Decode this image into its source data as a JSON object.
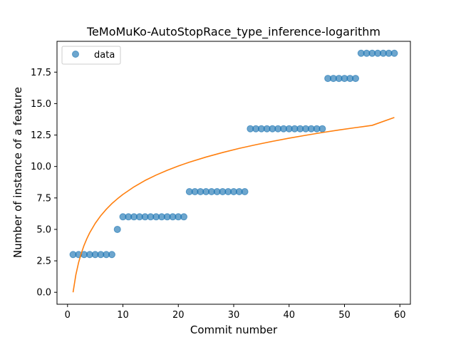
{
  "chart_data": {
    "type": "scatter",
    "title": "TeMoMuKo-AutoStopRace_type_inference-logarithm",
    "xlabel": "Commit number",
    "ylabel": "Number of instance of a feature",
    "xlim": [
      -1.9,
      61.9
    ],
    "ylim": [
      -0.95,
      19.95
    ],
    "xticks": [
      0,
      10,
      20,
      30,
      40,
      50,
      60
    ],
    "yticks": [
      0.0,
      2.5,
      5.0,
      7.5,
      10.0,
      12.5,
      15.0,
      17.5
    ],
    "xtick_labels": [
      "0",
      "10",
      "20",
      "30",
      "40",
      "50",
      "60"
    ],
    "ytick_labels": [
      "0.0",
      "2.5",
      "5.0",
      "7.5",
      "10.0",
      "12.5",
      "15.0",
      "17.5"
    ],
    "grid": false,
    "legend": {
      "position": "top-left",
      "entries": [
        "data"
      ]
    },
    "series": [
      {
        "name": "data",
        "kind": "scatter",
        "color": "#1f77b4",
        "x": [
          1,
          2,
          3,
          4,
          5,
          6,
          7,
          8,
          9,
          10,
          11,
          12,
          13,
          14,
          15,
          16,
          17,
          18,
          19,
          20,
          21,
          22,
          23,
          24,
          25,
          26,
          27,
          28,
          29,
          30,
          31,
          32,
          33,
          34,
          35,
          36,
          37,
          38,
          39,
          40,
          41,
          42,
          43,
          44,
          45,
          46,
          47,
          48,
          49,
          50,
          51,
          52,
          53,
          54,
          55,
          56,
          57,
          58,
          59
        ],
        "y": [
          3,
          3,
          3,
          3,
          3,
          3,
          3,
          3,
          5,
          6,
          6,
          6,
          6,
          6,
          6,
          6,
          6,
          6,
          6,
          6,
          6,
          8,
          8,
          8,
          8,
          8,
          8,
          8,
          8,
          8,
          8,
          8,
          13,
          13,
          13,
          13,
          13,
          13,
          13,
          13,
          13,
          13,
          13,
          13,
          13,
          13,
          17,
          17,
          17,
          17,
          17,
          17,
          19,
          19,
          19,
          19,
          19,
          19,
          19
        ]
      },
      {
        "kind": "line",
        "color": "#ff7f0e",
        "x": [
          1,
          1.5,
          2,
          2.5,
          3,
          3.5,
          4,
          5,
          6,
          7,
          8,
          9,
          10,
          12,
          14,
          16,
          18,
          20,
          22,
          25,
          28,
          31,
          34,
          37,
          40,
          43,
          46,
          49,
          52,
          55,
          59
        ],
        "y": [
          0.0,
          1.38,
          2.37,
          3.12,
          3.75,
          4.27,
          4.73,
          5.48,
          6.09,
          6.6,
          7.05,
          7.43,
          7.78,
          8.38,
          8.89,
          9.32,
          9.7,
          10.04,
          10.34,
          10.75,
          11.11,
          11.44,
          11.73,
          12.0,
          12.25,
          12.48,
          12.7,
          12.9,
          13.09,
          13.27,
          13.9
        ]
      }
    ]
  }
}
